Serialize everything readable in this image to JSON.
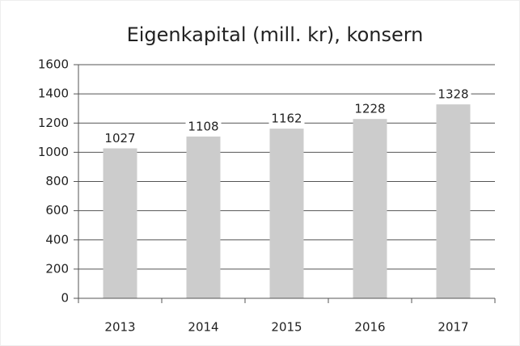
{
  "chart_data": {
    "type": "bar",
    "title": "Eigenkapital (mill. kr), konsern",
    "categories": [
      "2013",
      "2014",
      "2015",
      "2016",
      "2017"
    ],
    "values": [
      1027,
      1108,
      1162,
      1228,
      1328
    ],
    "color": "#cccccc",
    "ylim": [
      0,
      1600
    ],
    "yticks": [
      0,
      200,
      400,
      600,
      800,
      1000,
      1200,
      1400,
      1600
    ],
    "grid": true
  }
}
